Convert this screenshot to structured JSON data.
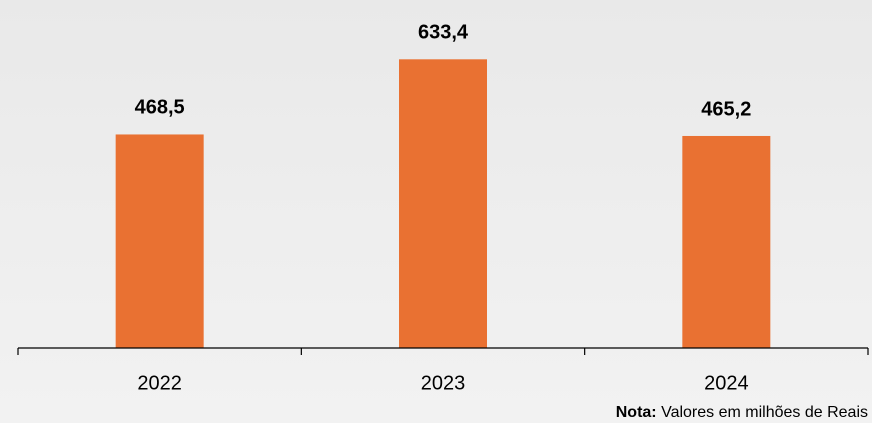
{
  "chart_data": {
    "type": "bar",
    "categories": [
      "2022",
      "2023",
      "2024"
    ],
    "values": [
      468.5,
      633.4,
      465.2
    ],
    "value_labels": [
      "468,5",
      "633,4",
      "465,2"
    ],
    "color": "#e97132",
    "ylim": [
      0,
      735
    ],
    "note": {
      "label": "Nota:",
      "text": "Valores em milhões de Reais"
    }
  }
}
